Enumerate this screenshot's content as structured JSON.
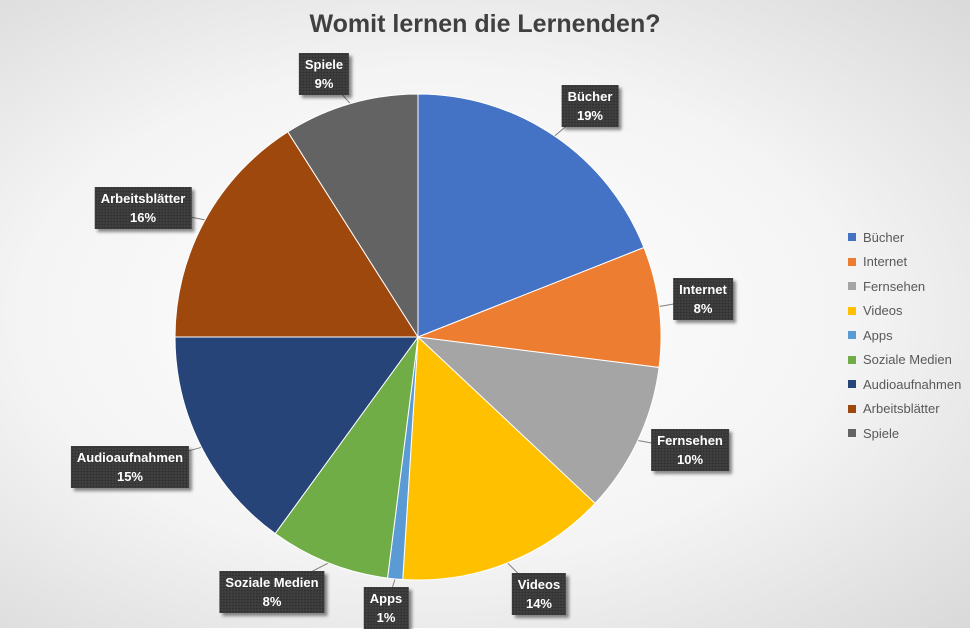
{
  "chart_data": {
    "type": "pie",
    "title": "Womit lernen die Lernenden?",
    "categories": [
      "Bücher",
      "Internet",
      "Fernsehen",
      "Videos",
      "Apps",
      "Soziale Medien",
      "Audioaufnahmen",
      "Arbeitsblätter",
      "Spiele"
    ],
    "values": [
      19,
      8,
      10,
      14,
      1,
      8,
      15,
      16,
      9
    ],
    "labels": [
      "19%",
      "8%",
      "10%",
      "14%",
      "1%",
      "8%",
      "15%",
      "16%",
      "9%"
    ],
    "colors": [
      "#4472C4",
      "#ED7D31",
      "#A5A5A5",
      "#FFC000",
      "#5B9BD5",
      "#70AD47",
      "#264478",
      "#9E480E",
      "#636363"
    ],
    "legend_position": "right",
    "start_angle": "12 o'clock, clockwise"
  }
}
